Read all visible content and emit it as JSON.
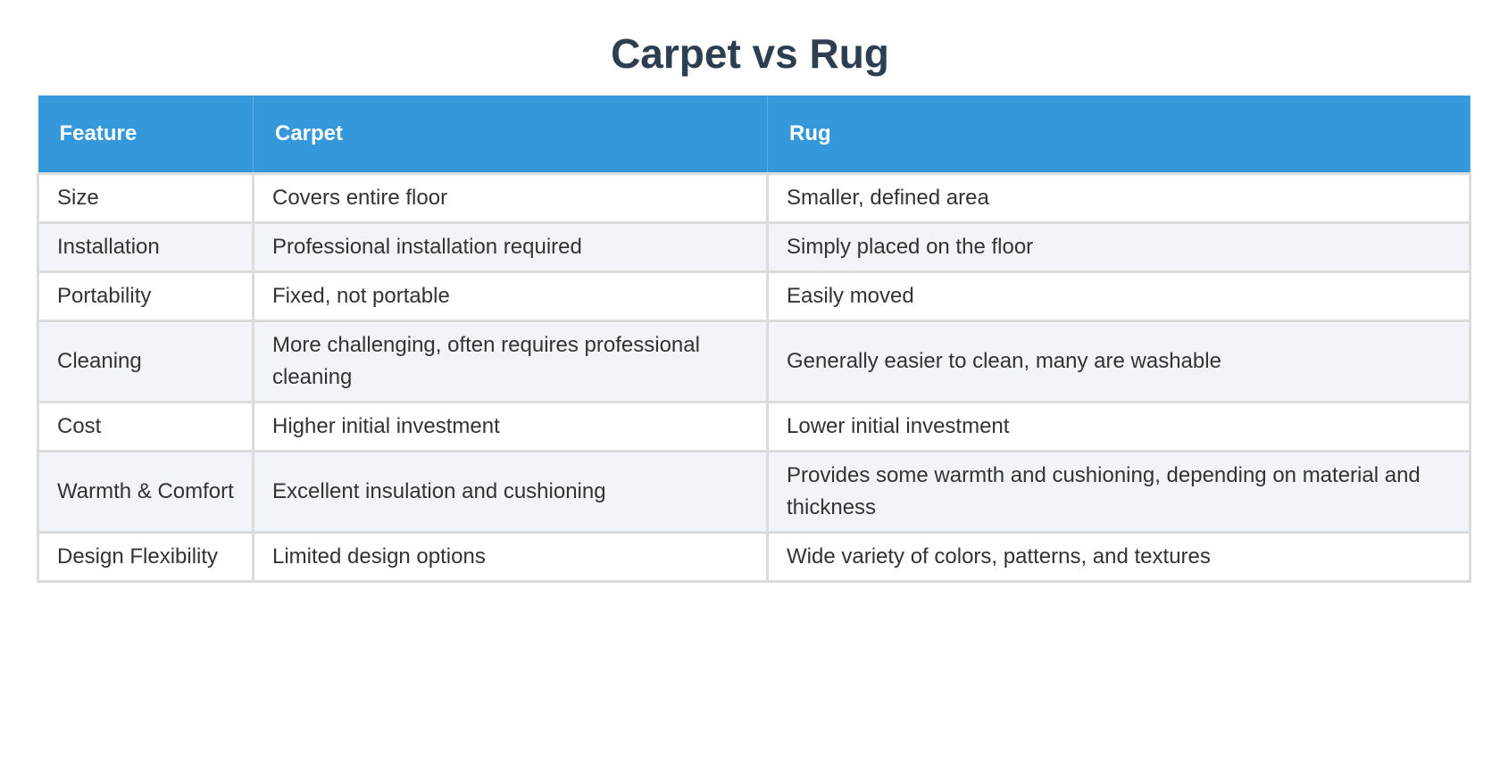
{
  "title": "Carpet vs Rug",
  "colors": {
    "header_bg": "#3498db",
    "title": "#2c3e50",
    "stripe": "#f1f4f9"
  },
  "table": {
    "headers": [
      "Feature",
      "Carpet",
      "Rug"
    ],
    "rows": [
      [
        "Size",
        "Covers entire floor",
        "Smaller, defined area"
      ],
      [
        "Installation",
        "Professional installation required",
        "Simply placed on the floor"
      ],
      [
        "Portability",
        "Fixed, not portable",
        "Easily moved"
      ],
      [
        "Cleaning",
        "More challenging, often requires professional cleaning",
        "Generally easier to clean, many are washable"
      ],
      [
        "Cost",
        "Higher initial investment",
        "Lower initial investment"
      ],
      [
        "Warmth & Comfort",
        "Excellent insulation and cushioning",
        "Provides some warmth and cushioning, depending on material and thickness"
      ],
      [
        "Design Flexibility",
        "Limited design options",
        "Wide variety of colors, patterns, and textures"
      ]
    ]
  }
}
